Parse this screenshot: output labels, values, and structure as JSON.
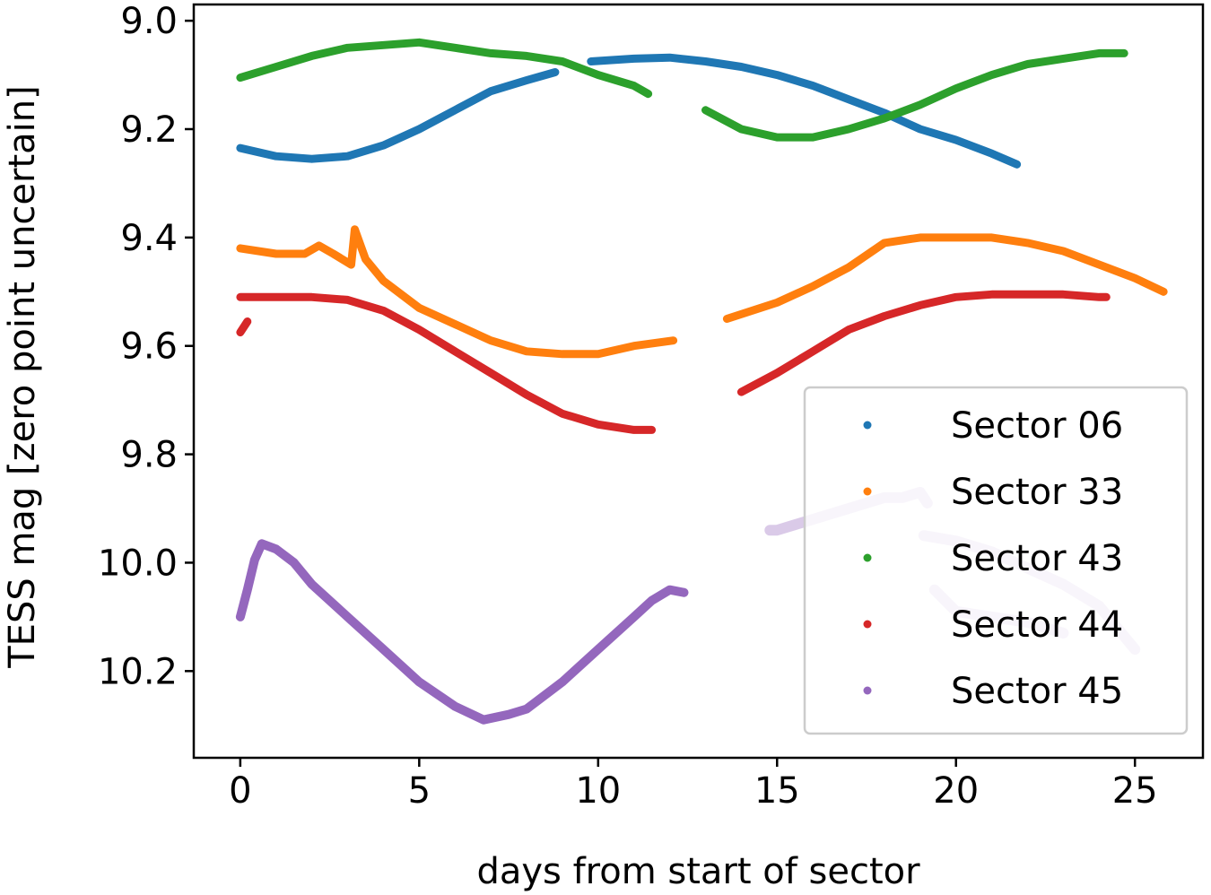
{
  "chart_data": {
    "type": "scatter",
    "title": "",
    "xlabel": "days from start of sector",
    "ylabel": "TESS mag [zero point uncertain]",
    "xlim": [
      -1.3,
      26.9
    ],
    "ylim": [
      10.36,
      8.97
    ],
    "y_inverted": true,
    "grid": false,
    "legend_position": "lower-right",
    "xticks": [
      0,
      5,
      10,
      15,
      20,
      25
    ],
    "yticks": [
      9.0,
      9.2,
      9.4,
      9.6,
      9.8,
      10.0,
      10.2
    ],
    "xtick_labels": [
      "0",
      "5",
      "10",
      "15",
      "20",
      "25"
    ],
    "ytick_labels": [
      "9.0",
      "9.2",
      "9.4",
      "9.6",
      "9.8",
      "10.0",
      "10.2"
    ],
    "series": [
      {
        "name": "Sector 06",
        "color": "#1f77b4",
        "segments": [
          {
            "x": [
              0,
              1,
              2,
              3,
              4,
              5,
              6,
              7,
              8,
              8.8
            ],
            "y": [
              9.235,
              9.25,
              9.255,
              9.25,
              9.23,
              9.2,
              9.165,
              9.13,
              9.11,
              9.095
            ]
          },
          {
            "x": [
              9.8,
              11,
              12,
              13,
              14,
              15,
              16,
              17,
              18,
              19,
              20,
              21,
              21.7
            ],
            "y": [
              9.075,
              9.07,
              9.068,
              9.075,
              9.085,
              9.1,
              9.12,
              9.145,
              9.17,
              9.2,
              9.22,
              9.245,
              9.265
            ]
          }
        ]
      },
      {
        "name": "Sector 33",
        "color": "#ff7f0e",
        "segments": [
          {
            "x": [
              0,
              1,
              1.8,
              2.2,
              2.6,
              3.1,
              3.2,
              3.5,
              4,
              5,
              6,
              7,
              8,
              9,
              10,
              11,
              12.1
            ],
            "y": [
              9.42,
              9.43,
              9.43,
              9.415,
              9.43,
              9.45,
              9.385,
              9.44,
              9.48,
              9.53,
              9.56,
              9.59,
              9.61,
              9.615,
              9.615,
              9.6,
              9.59
            ]
          },
          {
            "x": [
              13.6,
              15,
              16,
              17,
              18,
              19,
              20,
              21,
              22,
              23,
              24,
              25,
              25.8
            ],
            "y": [
              9.55,
              9.52,
              9.49,
              9.455,
              9.41,
              9.4,
              9.4,
              9.4,
              9.41,
              9.425,
              9.45,
              9.475,
              9.5
            ]
          }
        ]
      },
      {
        "name": "Sector 43",
        "color": "#2ca02c",
        "segments": [
          {
            "x": [
              0,
              1,
              2,
              3,
              4,
              5,
              6,
              7,
              8,
              9,
              10,
              11,
              11.4
            ],
            "y": [
              9.105,
              9.085,
              9.065,
              9.05,
              9.045,
              9.04,
              9.05,
              9.06,
              9.065,
              9.075,
              9.1,
              9.12,
              9.135
            ]
          },
          {
            "x": [
              13,
              14,
              15,
              16,
              17,
              18,
              19,
              20,
              21,
              22,
              23,
              24,
              24.7
            ],
            "y": [
              9.165,
              9.2,
              9.215,
              9.215,
              9.2,
              9.18,
              9.155,
              9.125,
              9.1,
              9.08,
              9.07,
              9.06,
              9.06
            ]
          }
        ]
      },
      {
        "name": "Sector 44",
        "color": "#d62728",
        "segments": [
          {
            "x": [
              0,
              0.2
            ],
            "y": [
              9.575,
              9.555
            ]
          },
          {
            "x": [
              0,
              1,
              2,
              3,
              4,
              5,
              6,
              7,
              8,
              9,
              10,
              11,
              11.5
            ],
            "y": [
              9.51,
              9.51,
              9.51,
              9.515,
              9.535,
              9.57,
              9.61,
              9.65,
              9.69,
              9.725,
              9.745,
              9.755,
              9.755
            ]
          },
          {
            "x": [
              14,
              15,
              16,
              17,
              18,
              19,
              20,
              21,
              22,
              23,
              24,
              24.2
            ],
            "y": [
              9.685,
              9.65,
              9.61,
              9.57,
              9.545,
              9.525,
              9.51,
              9.505,
              9.505,
              9.505,
              9.51,
              9.51
            ]
          }
        ]
      },
      {
        "name": "Sector 45",
        "color": "#9467bd",
        "segments": [
          {
            "x": [
              0,
              0.2,
              0.4,
              0.6,
              1,
              1.5,
              2,
              3,
              4,
              5,
              6,
              6.8,
              7.5,
              8,
              9,
              10,
              11,
              11.5,
              12,
              12.4
            ],
            "y": [
              10.1,
              10.05,
              9.995,
              9.965,
              9.975,
              10.0,
              10.04,
              10.1,
              10.16,
              10.22,
              10.265,
              10.29,
              10.28,
              10.27,
              10.22,
              10.16,
              10.1,
              10.07,
              10.05,
              10.055
            ]
          },
          {
            "x": [
              14.8,
              15,
              15.5,
              16,
              17,
              18,
              18.5,
              19,
              19.2
            ],
            "y": [
              9.94,
              9.94,
              9.93,
              9.92,
              9.9,
              9.88,
              9.88,
              9.87,
              9.89
            ]
          },
          {
            "x": [
              19.1,
              20,
              21,
              22,
              23,
              24,
              25
            ],
            "y": [
              9.95,
              9.96,
              9.98,
              10.01,
              10.04,
              10.08,
              10.16
            ]
          },
          {
            "x": [
              19.4,
              20,
              21,
              22,
              23
            ],
            "y": [
              10.05,
              10.09,
              10.1,
              10.11,
              10.13
            ]
          }
        ]
      }
    ]
  }
}
